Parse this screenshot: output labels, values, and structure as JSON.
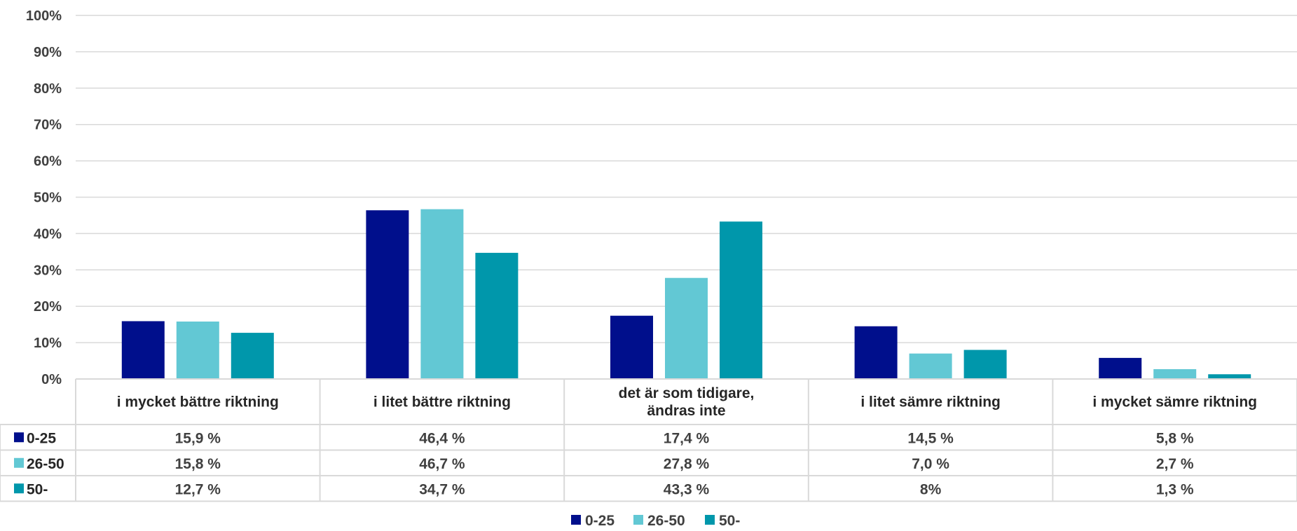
{
  "chart_data": {
    "type": "bar",
    "ylim": [
      0,
      100
    ],
    "y_ticks": [
      "0%",
      "10%",
      "20%",
      "30%",
      "40%",
      "50%",
      "60%",
      "70%",
      "80%",
      "90%",
      "100%"
    ],
    "grid": true,
    "legend_position": "bottom",
    "categories": [
      [
        "i mycket bättre riktning"
      ],
      [
        "i litet bättre riktning"
      ],
      [
        "det är som tidigare,",
        "ändras inte"
      ],
      [
        "i litet sämre riktning"
      ],
      [
        "i mycket sämre riktning"
      ]
    ],
    "series": [
      {
        "name": "0-25",
        "color": "#000f8c",
        "values": [
          15.9,
          46.4,
          17.4,
          14.5,
          5.8
        ],
        "labels": [
          "15,9 %",
          "46,4 %",
          "17,4 %",
          "14,5 %",
          "5,8 %"
        ]
      },
      {
        "name": "26-50",
        "color": "#62c8d4",
        "values": [
          15.8,
          46.7,
          27.8,
          7.0,
          2.7
        ],
        "labels": [
          "15,8 %",
          "46,7 %",
          "27,8 %",
          "7,0 %",
          "2,7 %"
        ]
      },
      {
        "name": "50-",
        "color": "#0097ab",
        "values": [
          12.7,
          34.7,
          43.3,
          8.0,
          1.3
        ],
        "labels": [
          "12,7 %",
          "34,7 %",
          "43,3 %",
          "8%",
          "1,3 %"
        ]
      }
    ]
  }
}
